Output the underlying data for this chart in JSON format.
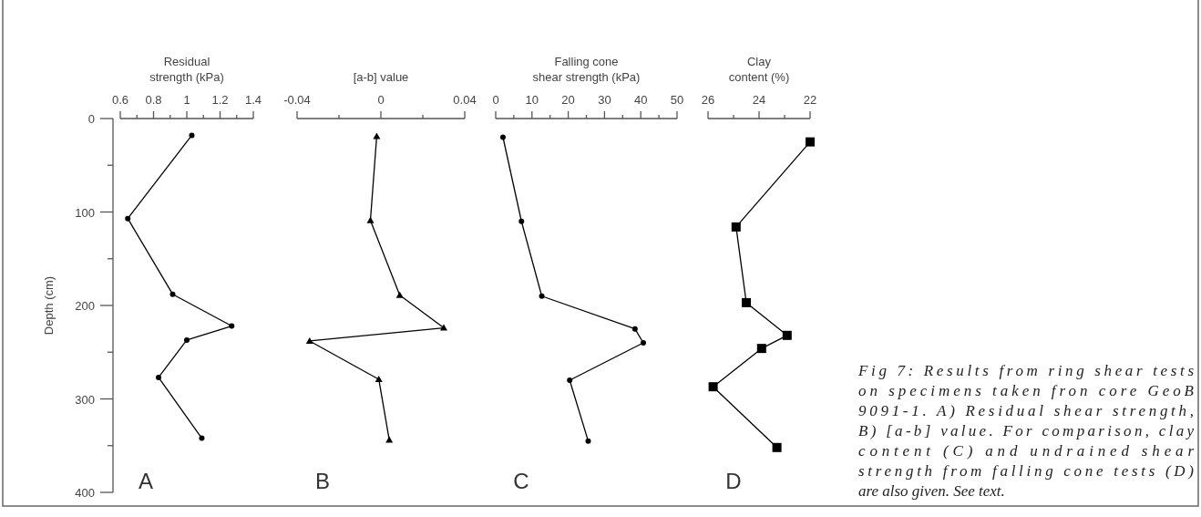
{
  "chart_data": [
    {
      "type": "line",
      "xlabel": "Residual\nstrength (kPa)",
      "ylabel": "Depth (cm)",
      "marker": "circle",
      "xlim": [
        0.6,
        1.4
      ],
      "xticks": [
        0.6,
        {
          "value": 0.7,
          "label": null
        },
        0.8,
        {
          "value": 0.9,
          "label": null
        },
        1,
        {
          "value": 1.1,
          "label": null
        },
        1.2,
        {
          "value": 1.3,
          "label": null
        },
        1.4
      ],
      "ylim": [
        400,
        0
      ],
      "yticks": [
        0,
        {
          "value": 50,
          "label": null
        },
        100,
        {
          "value": 150,
          "label": null
        },
        200,
        {
          "value": 250,
          "label": null
        },
        300,
        {
          "value": 350,
          "label": null
        },
        400
      ],
      "annotations": [
        "A"
      ],
      "series": [
        {
          "color": "#000000",
          "x": [
            1.03,
            0.645,
            0.915,
            1.27,
            1.0,
            0.83,
            1.09
          ],
          "values": [
            18,
            107,
            188,
            222,
            237,
            277,
            342
          ]
        }
      ]
    },
    {
      "type": "line",
      "xlabel": "[a-b] value",
      "marker": "triangle",
      "tick_labels": "x",
      "xlim": [
        -0.04,
        0.04
      ],
      "xticks": [
        -0.04,
        {
          "value": -0.02,
          "label": null
        },
        0,
        {
          "value": 0.02,
          "label": null
        },
        0.04
      ],
      "ylim": [
        400,
        0
      ],
      "annotations": [
        "B"
      ],
      "series": [
        {
          "color": "#000000",
          "x": [
            -0.002,
            -0.005,
            0.009,
            0.03,
            -0.034,
            -0.001,
            0.004
          ],
          "values": [
            19,
            109,
            189,
            224,
            238,
            279,
            344
          ]
        }
      ]
    },
    {
      "type": "line",
      "xlabel": "Falling cone\nshear strength (kPa)",
      "marker": "circle",
      "tick_labels": "x",
      "xlim": [
        0,
        50
      ],
      "xticks": [
        0,
        {
          "value": 5,
          "label": null
        },
        10,
        {
          "value": 15,
          "label": null
        },
        20,
        {
          "value": 25,
          "label": null
        },
        30,
        {
          "value": 35,
          "label": null
        },
        40,
        {
          "value": 45,
          "label": null
        },
        50
      ],
      "ylim": [
        400,
        0
      ],
      "annotations": [
        "C"
      ],
      "series": [
        {
          "color": "#000000",
          "x": [
            2.0,
            7.1,
            12.7,
            38.4,
            40.7,
            20.4,
            25.5
          ],
          "values": [
            20,
            110,
            190,
            225,
            240,
            280,
            345
          ]
        }
      ]
    },
    {
      "type": "line",
      "xlabel": "Clay\ncontent (%)",
      "marker": "square",
      "tick_labels": "x",
      "xlim": [
        26,
        22
      ],
      "xticks": [
        26,
        {
          "value": 25,
          "label": null
        },
        24,
        {
          "value": 23,
          "label": null
        },
        22
      ],
      "ylim": [
        400,
        0
      ],
      "annotations": [
        "D"
      ],
      "series": [
        {
          "color": "#000000",
          "x": [
            22.0,
            24.9,
            24.5,
            22.9,
            23.9,
            25.8,
            23.3
          ],
          "values": [
            25,
            116,
            197,
            232,
            246,
            287,
            352
          ]
        }
      ]
    },
    {
      "type": "other",
      "annotations": [
        "Fig 7: Results from ring shear tests on specimens taken fron core GeoB 9091-1. A) Residual shear strength, B) [a-b] value. For comparison, clay content (C) and undrained shear strength from falling cone tests (D) are also given. See text."
      ]
    }
  ]
}
